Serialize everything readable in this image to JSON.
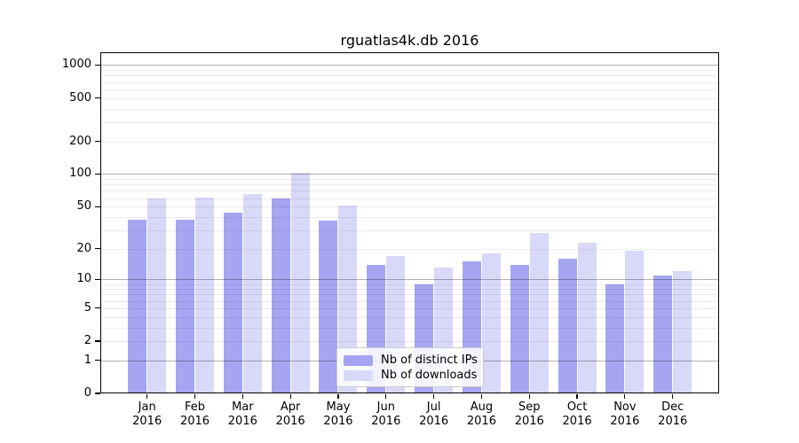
{
  "title": "rguatlas4k.db 2016",
  "chart_data": {
    "type": "bar",
    "title": "rguatlas4k.db 2016",
    "categories": [
      "Jan",
      "Feb",
      "Mar",
      "Apr",
      "May",
      "Jun",
      "Jul",
      "Aug",
      "Sep",
      "Oct",
      "Nov",
      "Dec"
    ],
    "category_year": "2016",
    "series": [
      {
        "name": "Nb of distinct IPs",
        "color": "#a5a5f2",
        "values": [
          38,
          38,
          44,
          60,
          37,
          14,
          9,
          15,
          14,
          16,
          9,
          11
        ]
      },
      {
        "name": "Nb of downloads",
        "color": "#d8d8f8",
        "values": [
          60,
          61,
          65,
          102,
          51,
          17,
          13,
          18,
          28,
          23,
          19,
          12
        ]
      }
    ],
    "xlabel": "",
    "ylabel": "",
    "yscale": "log1p",
    "ylim": [
      0,
      1300
    ],
    "yticks": [
      0,
      1,
      2,
      5,
      10,
      20,
      50,
      100,
      200,
      500,
      1000
    ],
    "major_grid_values": [
      1,
      10,
      100,
      1000
    ],
    "minor_grid_values": [
      2,
      3,
      4,
      5,
      6,
      7,
      8,
      9,
      20,
      30,
      40,
      50,
      60,
      70,
      80,
      90,
      200,
      300,
      400,
      500,
      600,
      700,
      800,
      900
    ],
    "grid": true,
    "legend_position": "lower center"
  },
  "colors": {
    "bar_distinct_ips": "#a5a5f2",
    "bar_downloads": "#d8d8f8",
    "major_grid": "rgba(0,0,0,0.30)",
    "minor_grid": "rgba(0,0,0,0.08)",
    "frame": "#000000",
    "background": "#ffffff",
    "legend_border": "#cccccc",
    "text": "#000000"
  }
}
